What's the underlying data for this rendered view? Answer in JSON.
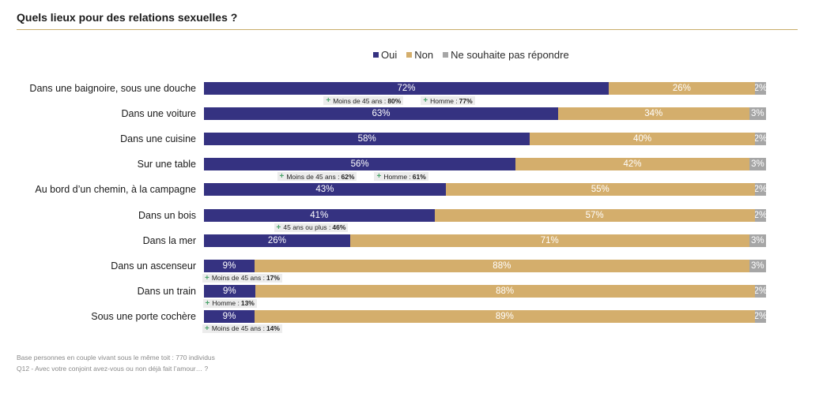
{
  "header": {
    "title": "Quels lieux pour des relations sexuelles ?"
  },
  "chart_data": {
    "type": "bar",
    "orientation": "horizontal",
    "stacked": true,
    "percent": true,
    "legend_position": "top",
    "series": [
      {
        "name": "Oui",
        "color": "#353281"
      },
      {
        "name": "Non",
        "color": "#d4ae6c"
      },
      {
        "name": "Ne souhaite pas répondre",
        "color": "#a6a6a6"
      }
    ],
    "rows": [
      {
        "label": "Dans une baignoire, sous une douche",
        "values": [
          72,
          26,
          2
        ],
        "annotations": [
          {
            "text": "Moins de 45 ans :",
            "value": "80%"
          },
          {
            "text": "Homme :",
            "value": "77%"
          }
        ]
      },
      {
        "label": "Dans une voiture",
        "values": [
          63,
          34,
          3
        ],
        "annotations": []
      },
      {
        "label": "Dans une cuisine",
        "values": [
          58,
          40,
          2
        ],
        "annotations": []
      },
      {
        "label": "Sur une table",
        "values": [
          56,
          42,
          3
        ],
        "annotations": [
          {
            "text": "Moins de 45 ans :",
            "value": "62%"
          },
          {
            "text": "Homme :",
            "value": "61%"
          }
        ]
      },
      {
        "label": "Au bord d’un chemin, à la campagne",
        "values": [
          43,
          55,
          2
        ],
        "annotations": []
      },
      {
        "label": "Dans un bois",
        "values": [
          41,
          57,
          2
        ],
        "annotations": [
          {
            "text": "45 ans ou plus :",
            "value": "46%"
          }
        ]
      },
      {
        "label": "Dans la mer",
        "values": [
          26,
          71,
          3
        ],
        "annotations": []
      },
      {
        "label": "Dans un ascenseur",
        "values": [
          9,
          88,
          3
        ],
        "annotations": [
          {
            "text": "Moins de 45 ans :",
            "value": "17%"
          }
        ]
      },
      {
        "label": "Dans un train",
        "values": [
          9,
          88,
          2
        ],
        "annotations": [
          {
            "text": "Homme :",
            "value": "13%"
          }
        ]
      },
      {
        "label": "Sous une porte cochère",
        "values": [
          9,
          89,
          2
        ],
        "annotations": [
          {
            "text": "Moins de 45 ans :",
            "value": "14%"
          }
        ]
      }
    ]
  },
  "footer": {
    "base": "Base personnes en couple vivant sous le même toit  : 770 individus",
    "question": "Q12 - Avec votre conjoint avez-vous ou non déjà fait l’amour… ?"
  }
}
